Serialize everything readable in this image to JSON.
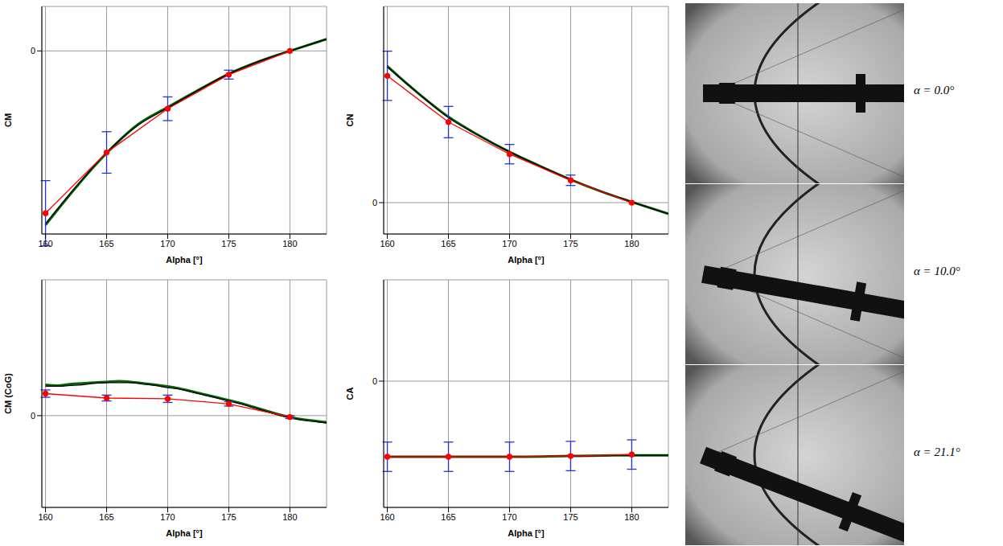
{
  "chart_data": [
    {
      "type": "line",
      "y_label": "CM",
      "x_label": "Alpha [°]",
      "xlim": [
        159.7,
        183
      ],
      "xticks": [
        160,
        165,
        170,
        175,
        180
      ],
      "ylim": [
        -2.47,
        0.6
      ],
      "yticks": [
        0
      ],
      "grid": true,
      "series": [
        {
          "color": "#006400",
          "x": [
            160,
            162.5,
            165,
            167.5,
            170,
            172.5,
            175,
            177.5,
            180,
            183
          ],
          "values": [
            -2.35,
            -1.84,
            -1.38,
            -1.0,
            -0.76,
            -0.53,
            -0.31,
            -0.14,
            0,
            0.16
          ]
        },
        {
          "color": "#000000",
          "x": [
            160,
            162.5,
            165,
            167.5,
            170,
            172.5,
            175,
            177.5,
            180,
            183
          ],
          "values": [
            -2.33,
            -1.83,
            -1.37,
            -1.01,
            -0.77,
            -0.53,
            -0.31,
            -0.14,
            0,
            0.16
          ]
        },
        {
          "color": "#ff0000",
          "marker": "circle",
          "x": [
            160,
            165,
            170,
            175,
            180
          ],
          "values": [
            -2.19,
            -1.37,
            -0.78,
            -0.32,
            0
          ],
          "error": [
            0.44,
            0.28,
            0.16,
            0.06,
            0
          ]
        }
      ]
    },
    {
      "type": "line",
      "y_label": "CN",
      "x_label": "Alpha [°]",
      "xlim": [
        159.7,
        183
      ],
      "xticks": [
        160,
        165,
        170,
        175,
        180
      ],
      "ylim": [
        -0.42,
        2.63
      ],
      "yticks": [
        0
      ],
      "grid": true,
      "series": [
        {
          "color": "#006400",
          "x": [
            160,
            162.5,
            165,
            167.5,
            170,
            172.5,
            175,
            177.5,
            180,
            183
          ],
          "values": [
            1.83,
            1.47,
            1.15,
            0.9,
            0.68,
            0.49,
            0.31,
            0.15,
            0.01,
            -0.15
          ]
        },
        {
          "color": "#000000",
          "x": [
            160,
            162.5,
            165,
            167.5,
            170,
            172.5,
            175,
            177.5,
            180,
            183
          ],
          "values": [
            1.82,
            1.47,
            1.14,
            0.9,
            0.68,
            0.49,
            0.31,
            0.15,
            0.01,
            -0.15
          ]
        },
        {
          "color": "#ff0000",
          "marker": "circle",
          "x": [
            160,
            165,
            170,
            175,
            180
          ],
          "values": [
            1.7,
            1.08,
            0.65,
            0.3,
            0
          ],
          "error": [
            0.33,
            0.21,
            0.13,
            0.07,
            0
          ]
        }
      ]
    },
    {
      "type": "line",
      "y_label": "CM (CoG)",
      "x_label": "Alpha [°]",
      "xlim": [
        159.7,
        183
      ],
      "xticks": [
        160,
        165,
        170,
        175,
        180
      ],
      "ylim": [
        -1.25,
        1.85
      ],
      "yticks": [
        0
      ],
      "grid": true,
      "series": [
        {
          "color": "#006400",
          "x": [
            160,
            161,
            162,
            163,
            164,
            165,
            166,
            167,
            168,
            169,
            170,
            171,
            172,
            173,
            174,
            175,
            176,
            177,
            178,
            179,
            180,
            181,
            182,
            183
          ],
          "values": [
            0.42,
            0.41,
            0.43,
            0.44,
            0.45,
            0.46,
            0.47,
            0.46,
            0.44,
            0.42,
            0.4,
            0.37,
            0.33,
            0.29,
            0.25,
            0.21,
            0.17,
            0.12,
            0.07,
            0.02,
            -0.02,
            -0.05,
            -0.07,
            -0.09
          ]
        },
        {
          "color": "#000000",
          "x": [
            160,
            161,
            162,
            163,
            164,
            165,
            166,
            167,
            168,
            169,
            170,
            171,
            172,
            173,
            174,
            175,
            176,
            177,
            178,
            179,
            180,
            181,
            182,
            183
          ],
          "values": [
            0.4,
            0.4,
            0.41,
            0.42,
            0.44,
            0.45,
            0.45,
            0.45,
            0.43,
            0.41,
            0.38,
            0.36,
            0.32,
            0.28,
            0.24,
            0.2,
            0.16,
            0.11,
            0.06,
            0.01,
            -0.03,
            -0.06,
            -0.08,
            -0.1
          ]
        },
        {
          "color": "#ff0000",
          "marker": "circle",
          "x": [
            160,
            165,
            170,
            175,
            180
          ],
          "values": [
            0.3,
            0.24,
            0.23,
            0.16,
            -0.02
          ],
          "error": [
            0.05,
            0.04,
            0.05,
            0.03,
            0.02
          ]
        }
      ]
    },
    {
      "type": "line",
      "y_label": "CA",
      "x_label": "Alpha [°]",
      "xlim": [
        159.7,
        183
      ],
      "xticks": [
        160,
        165,
        170,
        175,
        180
      ],
      "ylim": [
        -1.72,
        1.38
      ],
      "yticks": [
        0
      ],
      "grid": true,
      "series": [
        {
          "color": "#006400",
          "x": [
            160,
            165,
            170,
            175,
            180,
            183
          ],
          "values": [
            -1.03,
            -1.03,
            -1.03,
            -1.02,
            -1.01,
            -1.01
          ]
        },
        {
          "color": "#000000",
          "x": [
            160,
            165,
            170,
            175,
            180,
            183
          ],
          "values": [
            -1.03,
            -1.03,
            -1.03,
            -1.02,
            -1.01,
            -1.01
          ]
        },
        {
          "color": "#ff0000",
          "marker": "circle",
          "x": [
            160,
            165,
            170,
            175,
            180
          ],
          "values": [
            -1.03,
            -1.03,
            -1.03,
            -1.02,
            -1.0
          ],
          "error": [
            0.2,
            0.2,
            0.2,
            0.2,
            0.2
          ]
        }
      ]
    }
  ],
  "images": [
    {
      "label": "α = 0.0°",
      "alpha": 0.0
    },
    {
      "label": "α = 10.0°",
      "alpha": 10.0
    },
    {
      "label": "α = 21.1°",
      "alpha": 21.1
    }
  ]
}
